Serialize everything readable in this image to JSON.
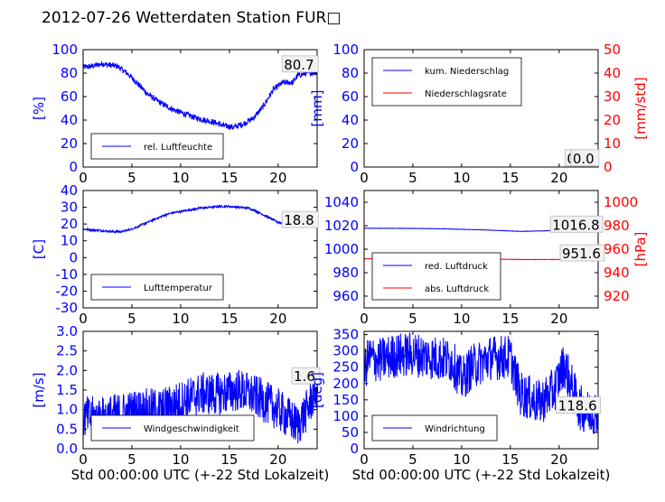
{
  "title": "2012-07-26 Wetterdaten Station FUR□",
  "colors": {
    "blue": "#0000ff",
    "red": "#ff0000",
    "black": "#000000"
  },
  "chart_data": [
    {
      "id": "p1",
      "type": "line",
      "xlim": [
        0,
        24
      ],
      "xticks": [
        0,
        5,
        10,
        15,
        20
      ],
      "ylim": [
        0,
        100
      ],
      "yticks": [
        0,
        20,
        40,
        60,
        80,
        100
      ],
      "ylabel": "[%]",
      "xlabel": "",
      "legend": "lower-left",
      "series": [
        {
          "name": "rel. Luftfeuchte",
          "color": "#0000ff",
          "x": [
            0,
            1,
            2,
            2.5,
            3.5,
            4.5,
            5.5,
            6.5,
            7.5,
            8.5,
            9.5,
            10.5,
            11.5,
            12.5,
            13.5,
            14.5,
            15.5,
            16.5,
            17.5,
            18.5,
            19.5,
            20.5,
            21.5,
            22,
            23,
            24
          ],
          "y": [
            85,
            86,
            88,
            87,
            86,
            80,
            72,
            63,
            57,
            52,
            48,
            45,
            42,
            40,
            38,
            35,
            34,
            37,
            42,
            52,
            66,
            72,
            72,
            78,
            80,
            80.7
          ],
          "noise": 2.5
        }
      ],
      "annotations": [
        {
          "text": "80.7",
          "x": 20.5,
          "y": 84
        }
      ]
    },
    {
      "id": "p2",
      "type": "line",
      "xlim": [
        0,
        24
      ],
      "xticks": [
        0,
        5,
        10,
        15,
        20
      ],
      "ylim": [
        0,
        100
      ],
      "yticks": [
        0,
        20,
        40,
        60,
        80,
        100
      ],
      "ylim2": [
        0,
        50
      ],
      "yticks2": [
        0,
        10,
        20,
        30,
        40,
        50
      ],
      "ylabel": "[mm]",
      "ylabel2": "[mm/std]",
      "xlabel": "",
      "legend": "upper-left",
      "series": [
        {
          "name": "kum. Niederschlag",
          "color": "#0000ff",
          "x": [
            0,
            24
          ],
          "y": [
            0,
            0
          ],
          "noise": 0
        },
        {
          "name": "Niederschlagsrate",
          "color": "#ff0000",
          "x": [
            0,
            24
          ],
          "y": [
            0,
            0
          ],
          "noise": 0
        }
      ],
      "annotations": [
        {
          "text": "0.0",
          "x": 20.7,
          "y": 4
        },
        {
          "text": "0.0",
          "x": 21.3,
          "y": 4
        }
      ]
    },
    {
      "id": "p3",
      "type": "line",
      "xlim": [
        0,
        24
      ],
      "xticks": [
        0,
        5,
        10,
        15,
        20
      ],
      "ylim": [
        -30,
        40
      ],
      "yticks": [
        -30,
        -20,
        -10,
        0,
        10,
        20,
        30,
        40
      ],
      "ylabel": "[C]",
      "xlabel": "",
      "legend": "lower-left",
      "series": [
        {
          "name": "Lufttemperatur",
          "color": "#0000ff",
          "x": [
            0,
            1,
            2,
            3,
            4,
            5,
            6,
            7,
            8,
            9,
            10,
            11,
            12,
            13,
            14,
            15,
            16,
            17,
            18,
            19,
            20,
            21,
            22,
            23,
            24
          ],
          "y": [
            17,
            16.5,
            16,
            15.5,
            15.5,
            17,
            19.5,
            22,
            24.5,
            26.5,
            27.5,
            28.5,
            29.5,
            30,
            30.5,
            30.5,
            30,
            29.5,
            27,
            24,
            21,
            20,
            19.5,
            19,
            18.8
          ],
          "noise": 0.6
        }
      ],
      "annotations": [
        {
          "text": "18.8",
          "x": 20.5,
          "y": 20
        }
      ]
    },
    {
      "id": "p4",
      "type": "line",
      "xlim": [
        0,
        24
      ],
      "xticks": [
        0,
        5,
        10,
        15,
        20
      ],
      "ylim": [
        950,
        1050
      ],
      "yticks": [
        960,
        980,
        1000,
        1020,
        1040
      ],
      "ylim2": [
        910,
        1010
      ],
      "yticks2": [
        920,
        940,
        960,
        980,
        1000
      ],
      "ylabel": "",
      "ylabel2": "[hPa]",
      "xlabel": "",
      "legend": "lower-left",
      "series": [
        {
          "name": "red. Luftdruck",
          "color": "#0000ff",
          "x": [
            0,
            4,
            8,
            12,
            16,
            18,
            20,
            24
          ],
          "y": [
            1017.8,
            1017.8,
            1017.4,
            1016.5,
            1015.2,
            1015.5,
            1016.2,
            1016.8
          ],
          "noise": 0.15
        },
        {
          "name": "abs. Luftdruck",
          "color": "#ff0000",
          "axis": 2,
          "x": [
            0,
            4,
            8,
            12,
            16,
            20,
            24
          ],
          "y": [
            951.8,
            951.8,
            951.9,
            951.7,
            951.2,
            951.2,
            951.6
          ],
          "noise": 0.15
        }
      ],
      "annotations": [
        {
          "text": "1016.8",
          "x": 19.2,
          "y": 1017.5
        },
        {
          "text": "951.6",
          "x": 20.2,
          "y": 993
        }
      ]
    },
    {
      "id": "p5",
      "type": "line",
      "xlim": [
        0,
        24
      ],
      "xticks": [
        0,
        5,
        10,
        15,
        20
      ],
      "ylim": [
        0,
        3
      ],
      "yticks": [
        0.0,
        0.5,
        1.0,
        1.5,
        2.0,
        2.5,
        3.0
      ],
      "ylabel": "[m/s]",
      "xlabel": "Std 00:00:00 UTC (+-22 Std Lokalzeit)",
      "legend": "lower-left",
      "series": [
        {
          "name": "Windgeschwindigkeit",
          "color": "#0000ff",
          "x": [
            0,
            2,
            4,
            6,
            8,
            10,
            12,
            14,
            16,
            18,
            20,
            22,
            23,
            24
          ],
          "y": [
            0.8,
            0.8,
            0.9,
            1.0,
            1.0,
            1.2,
            1.4,
            1.4,
            1.5,
            1.3,
            1.0,
            0.6,
            1.0,
            1.6
          ],
          "noise": 0.55
        }
      ],
      "annotations": [
        {
          "text": "1.6",
          "x": 21.5,
          "y": 1.75
        }
      ]
    },
    {
      "id": "p6",
      "type": "line",
      "xlim": [
        0,
        24
      ],
      "xticks": [
        0,
        5,
        10,
        15,
        20
      ],
      "ylim": [
        0,
        360
      ],
      "yticks": [
        0,
        50,
        100,
        150,
        200,
        250,
        300,
        350
      ],
      "ylabel": "[deg]",
      "xlabel": "Std 00:00:00 UTC (+-22 Std Lokalzeit)",
      "legend": "lower-left",
      "series": [
        {
          "name": "Windrichtung",
          "color": "#0000ff",
          "x": [
            0,
            0.5,
            1.5,
            3,
            5,
            7,
            9,
            10,
            11,
            13,
            15,
            16,
            18,
            19.5,
            20.5,
            22,
            23,
            24
          ],
          "y": [
            240,
            280,
            270,
            285,
            290,
            280,
            270,
            210,
            250,
            280,
            280,
            170,
            140,
            180,
            260,
            130,
            110,
            118.6
          ],
          "noise": 70
        }
      ],
      "annotations": [
        {
          "text": "118.6",
          "x": 19.8,
          "y": 120
        }
      ]
    }
  ]
}
